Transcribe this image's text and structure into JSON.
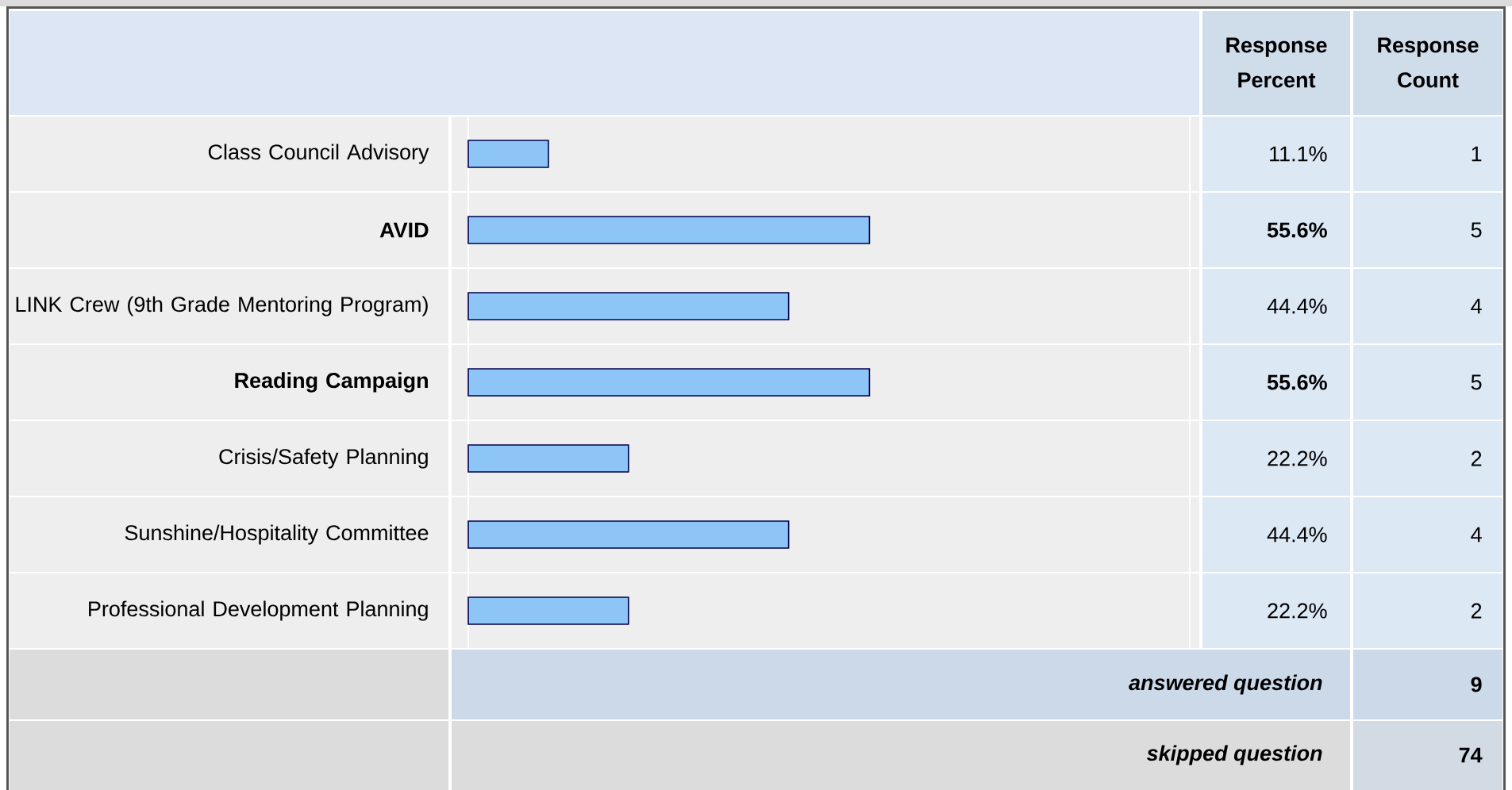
{
  "chart_data": {
    "type": "bar",
    "orientation": "horizontal",
    "categories": [
      "Class Council Advisory",
      "AVID",
      "LINK Crew (9th Grade Mentoring Program)",
      "Reading Campaign",
      "Crisis/Safety Planning",
      "Sunshine/Hospitality Committee",
      "Professional Development Planning"
    ],
    "values": [
      11.1,
      55.6,
      44.4,
      55.6,
      22.2,
      44.4,
      22.2
    ],
    "value_labels": [
      "11.1%",
      "55.6%",
      "44.4%",
      "55.6%",
      "22.2%",
      "44.4%",
      "22.2%"
    ],
    "color": "#8ec5f7",
    "xlim": [
      0,
      100
    ],
    "tick_labels": "y",
    "annotations": [
      "Response Percent",
      "Response Count",
      "1",
      "5",
      "4",
      "5",
      "2",
      "4",
      "2",
      "answered question",
      "9",
      "skipped question",
      "74"
    ]
  }
}
